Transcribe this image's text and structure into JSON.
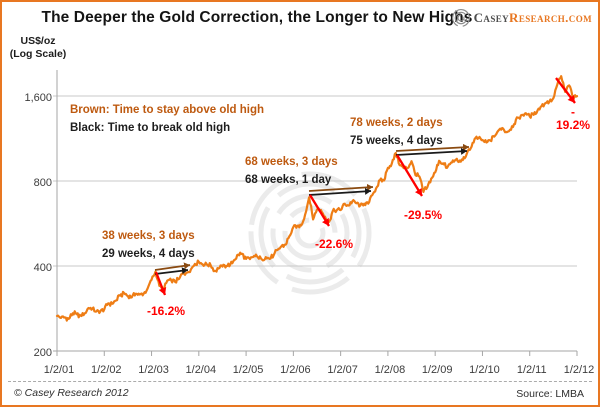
{
  "title": "The Deeper the Gold Correction, the Longer to New Highs",
  "logo": {
    "brand_primary": "Casey",
    "brand_secondary": "Research.com"
  },
  "y_axis": {
    "label_line1": "US$/oz",
    "label_line2": "(Log Scale)",
    "ticks": [
      "1,600",
      "800",
      "400",
      "200"
    ]
  },
  "x_axis": {
    "ticks": [
      "1/2/01",
      "1/2/02",
      "1/2/03",
      "1/2/04",
      "1/2/05",
      "1/2/06",
      "1/2/07",
      "1/2/08",
      "1/2/09",
      "1/2/10",
      "1/2/11",
      "1/2/12"
    ]
  },
  "legend": {
    "brown": "Brown: Time to stay above old high",
    "black": "Black: Time to break old high"
  },
  "annotations": [
    {
      "brown": "38 weeks, 3 days",
      "black": "29 weeks, 4 days",
      "drop": "-16.2%"
    },
    {
      "brown": "68 weeks, 3 days",
      "black": "68 weeks, 1 day",
      "drop": "-22.6%"
    },
    {
      "brown": "78 weeks, 2 days",
      "black": "75 weeks, 4 days",
      "drop": "-29.5%"
    },
    {
      "drop": "-\n19.2%"
    }
  ],
  "footer": {
    "copyright": "© Casey Research 2012",
    "source": "Source: LMBA"
  },
  "colors": {
    "line": "#EE7D15",
    "brown_arrow": "#8A4A10",
    "black_arrow": "#1a1a1a",
    "red": "#FF0000",
    "border": "#E87722",
    "grid": "#C9C9C9",
    "axis": "#A6A6A6",
    "watermark": "#E4E4E4",
    "logo_gray": "#8c8c8c"
  },
  "chart_data": {
    "type": "line",
    "title": "The Deeper the Gold Correction, the Longer to New Highs",
    "xlabel": "",
    "ylabel": "US$/oz (Log Scale)",
    "yscale": "log",
    "ylim": [
      200,
      2000
    ],
    "y_tick_values": [
      200,
      400,
      800,
      1600
    ],
    "x_tick_labels": [
      "1/2/01",
      "1/2/02",
      "1/2/03",
      "1/2/04",
      "1/2/05",
      "1/2/06",
      "1/2/07",
      "1/2/08",
      "1/2/09",
      "1/2/10",
      "1/2/11",
      "1/2/12"
    ],
    "grid": "horizontal-only",
    "legend_position": "upper-left-inside",
    "series": [
      {
        "name": "Gold price (US$/oz), LMBA",
        "frequency": "monthly",
        "start": "2001-01",
        "end": "2012-01",
        "values": [
          266,
          262,
          263,
          260,
          272,
          270,
          267,
          272,
          284,
          283,
          276,
          276,
          281,
          295,
          294,
          302,
          314,
          321,
          313,
          310,
          319,
          317,
          319,
          333,
          357,
          382,
          340,
          326,
          355,
          356,
          351,
          360,
          379,
          379,
          389,
          407,
          414,
          405,
          406,
          403,
          384,
          392,
          398,
          400,
          405,
          420,
          439,
          442,
          424,
          423,
          434,
          429,
          422,
          430,
          424,
          437,
          456,
          470,
          476,
          510,
          550,
          555,
          557,
          610,
          700,
          585,
          634,
          632,
          599,
          572,
          627,
          630,
          631,
          665,
          655,
          679,
          667,
          655,
          665,
          665,
          712,
          754,
          806,
          803,
          890,
          922,
          1005,
          910,
          889,
          889,
          940,
          839,
          830,
          732,
          760,
          816,
          858,
          943,
          924,
          890,
          929,
          946,
          934,
          949,
          997,
          1043,
          1127,
          1135,
          1118,
          1095,
          1113,
          1149,
          1205,
          1233,
          1193,
          1216,
          1271,
          1342,
          1370,
          1391,
          1356,
          1373,
          1424,
          1474,
          1511,
          1529,
          1573,
          1756,
          1880,
          1655,
          1745,
          1574,
          1598
        ]
      }
    ],
    "corrections": [
      {
        "peak_label": "1/2/03 area",
        "drop_pct": -16.2,
        "stay_above_old_high": "38 weeks, 3 days",
        "break_old_high": "29 weeks, 4 days"
      },
      {
        "peak_label": "mid-2006",
        "drop_pct": -22.6,
        "stay_above_old_high": "68 weeks, 3 days",
        "break_old_high": "68 weeks, 1 day"
      },
      {
        "peak_label": "early 2008",
        "drop_pct": -29.5,
        "stay_above_old_high": "78 weeks, 2 days",
        "break_old_high": "75 weeks, 4 days"
      },
      {
        "peak_label": "late 2011",
        "drop_pct": -19.2
      }
    ]
  }
}
